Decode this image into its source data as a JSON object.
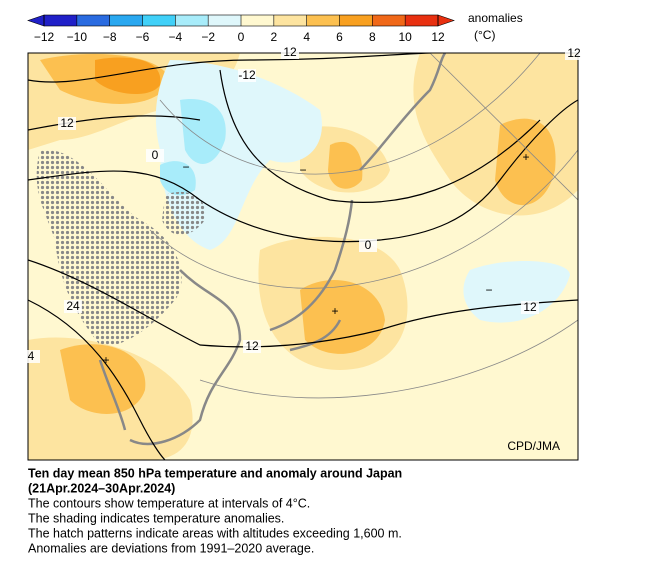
{
  "colorbar": {
    "label": "anomalies",
    "unit": "(°C)",
    "ticks": [
      {
        "value": -12,
        "label": "−12"
      },
      {
        "value": -10,
        "label": "−10"
      },
      {
        "value": -8,
        "label": "−8"
      },
      {
        "value": -6,
        "label": "−6"
      },
      {
        "value": -4,
        "label": "−4"
      },
      {
        "value": -2,
        "label": "−2"
      },
      0,
      2,
      4,
      6,
      8,
      10,
      12
    ],
    "colors": [
      "#2020c8",
      "#2a6be0",
      "#2aa8f0",
      "#40d0f8",
      "#a8ecfa",
      "#dff7fb",
      "#fff8d0",
      "#fde4a0",
      "#fcc050",
      "#f8a020",
      "#f06818",
      "#e83010"
    ]
  },
  "map": {
    "contour_labels": [
      12,
      -12,
      12,
      0,
      0,
      24,
      4,
      12,
      12,
      12
    ],
    "signs": [
      "+",
      "+",
      "+",
      "−",
      "−",
      "−"
    ],
    "credit": "CPD/JMA"
  },
  "caption": {
    "title": "Ten day mean 850 hPa temperature and anomaly around Japan",
    "period": "(21Apr.2024–30Apr.2024)",
    "lines": [
      "The contours show temperature at intervals of 4°C.",
      "The shading indicates temperature anomalies.",
      "The hatch patterns indicate areas with altitudes exceeding 1,600 m.",
      "Anomalies are deviations from 1991–2020 average."
    ]
  }
}
